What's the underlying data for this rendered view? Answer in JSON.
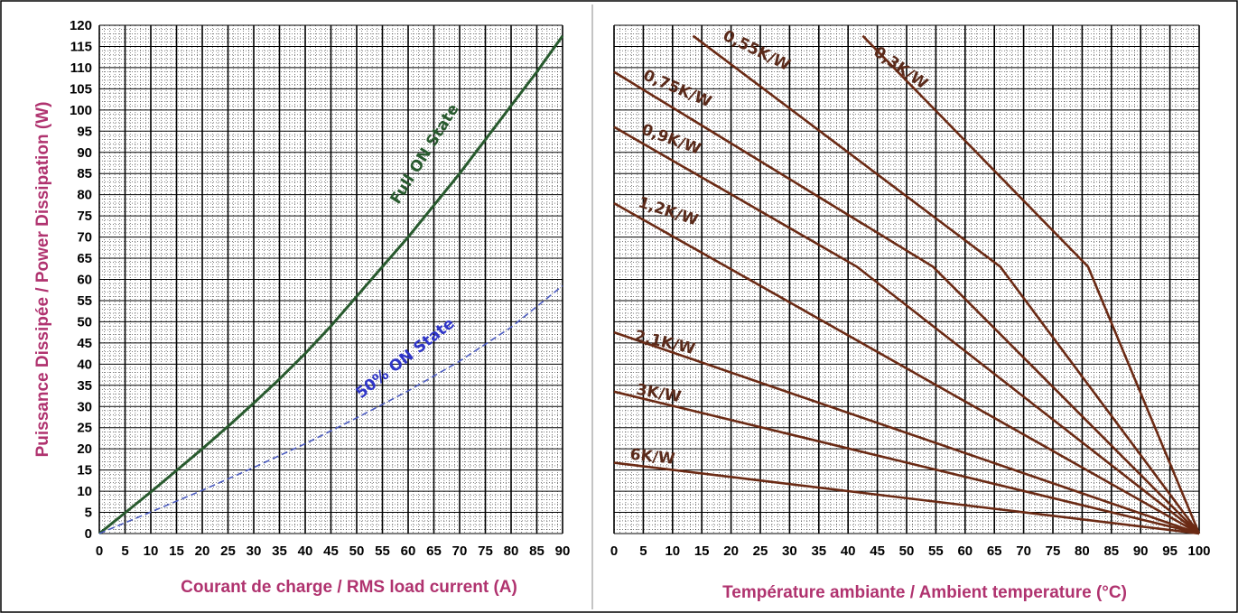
{
  "chart_data": [
    {
      "type": "line",
      "title": "",
      "xlabel": "Courant de charge / RMS load current (A)",
      "ylabel": "Puissance Dissipée / Power Dissipation (W)",
      "xlim": [
        0,
        90
      ],
      "ylim": [
        0,
        120
      ],
      "xticks": [
        0,
        5,
        10,
        15,
        20,
        25,
        30,
        35,
        40,
        45,
        50,
        55,
        60,
        65,
        70,
        75,
        80,
        85,
        90
      ],
      "yticks": [
        0,
        5,
        10,
        15,
        20,
        25,
        30,
        35,
        40,
        45,
        50,
        55,
        60,
        65,
        70,
        75,
        80,
        85,
        90,
        95,
        100,
        105,
        110,
        115,
        120
      ],
      "grid": true,
      "colors": {
        "Full ON State": "#285a2e",
        "50% ON State": "#4c5cc0"
      },
      "series": [
        {
          "name": "Full ON State",
          "style": "solid",
          "x": [
            0,
            5,
            10,
            15,
            20,
            25,
            30,
            35,
            40,
            45,
            50,
            55,
            60,
            65,
            70,
            75,
            80,
            85,
            90
          ],
          "y": [
            0,
            4.9,
            9.8,
            14.9,
            20.0,
            25.3,
            30.8,
            36.5,
            42.5,
            49.0,
            56.0,
            63.0,
            70.0,
            77.5,
            85.0,
            93.0,
            101.0,
            109.0,
            117.5
          ]
        },
        {
          "name": "50% ON State",
          "style": "dashed",
          "x": [
            0,
            10,
            20,
            30,
            40,
            50,
            60,
            70,
            80,
            90
          ],
          "y": [
            0,
            5.1,
            10.2,
            15.6,
            21.2,
            27.3,
            33.7,
            40.7,
            48.7,
            58.5
          ]
        }
      ]
    },
    {
      "type": "line",
      "title": "",
      "xlabel": "Température ambiante / Ambient temperature (°C)",
      "ylabel": "",
      "xlim": [
        0,
        100
      ],
      "ylim": [
        0,
        120
      ],
      "xticks": [
        0,
        5,
        10,
        15,
        20,
        25,
        30,
        35,
        40,
        45,
        50,
        55,
        60,
        65,
        70,
        75,
        80,
        85,
        90,
        95,
        100
      ],
      "grid": true,
      "colors": {
        "line": "#6b2a14",
        "label": "#5a2a1a"
      },
      "series": [
        {
          "name": "0,3K/W",
          "x": [
            42.5,
            81,
            100
          ],
          "y": [
            117.5,
            63,
            0
          ]
        },
        {
          "name": "0,55K/W",
          "x": [
            13.5,
            66,
            100
          ],
          "y": [
            117.5,
            63,
            0
          ]
        },
        {
          "name": "0,75K/W",
          "x": [
            0,
            54.5,
            100
          ],
          "y": [
            109,
            63,
            0
          ]
        },
        {
          "name": "0,9K/W",
          "x": [
            0,
            41.5,
            100
          ],
          "y": [
            96,
            63,
            0
          ]
        },
        {
          "name": "1,2K/W",
          "x": [
            0,
            100
          ],
          "y": [
            78,
            0
          ]
        },
        {
          "name": "2,1K/W",
          "x": [
            0,
            100
          ],
          "y": [
            47.5,
            0
          ]
        },
        {
          "name": "3K/W",
          "x": [
            0,
            100
          ],
          "y": [
            33.5,
            0
          ]
        },
        {
          "name": "6K/W",
          "x": [
            0,
            100
          ],
          "y": [
            16.7,
            0
          ]
        }
      ]
    }
  ]
}
